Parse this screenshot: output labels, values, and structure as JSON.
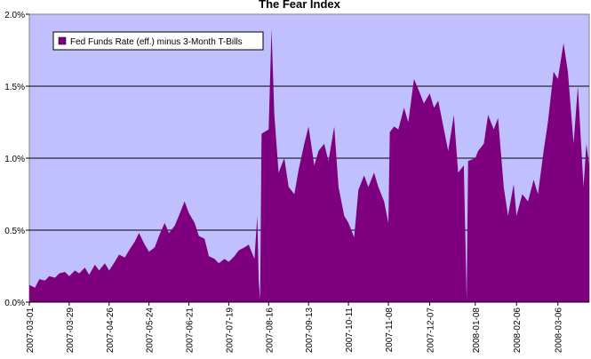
{
  "chart_data": {
    "type": "area",
    "title": "The Fear Index",
    "xlabel": "",
    "ylabel": "",
    "ylim": [
      0,
      2.0
    ],
    "ytick_labels": [
      "0.0%",
      "0.5%",
      "1.0%",
      "1.5%",
      "2.0%"
    ],
    "yticks": [
      0,
      0.5,
      1.0,
      1.5,
      2.0
    ],
    "xlim": [
      "2007-03-01",
      "2008-03-28"
    ],
    "xtick_labels": [
      "2007-03-01",
      "2007-03-29",
      "2007-04-26",
      "2007-05-24",
      "2007-06-21",
      "2007-07-19",
      "2007-08-16",
      "2007-09-13",
      "2007-10-11",
      "2007-11-08",
      "2007-12-07",
      "2008-01-08",
      "2008-02-06",
      "2008-03-06"
    ],
    "grid": "horizontal",
    "legend_position": "top-left",
    "series": [
      {
        "name": "Fed Funds Rate (eff.) minus 3-Month T-Bills",
        "color": "#7f007f",
        "points": [
          [
            "2007-03-01",
            0.12
          ],
          [
            "2007-03-05",
            0.1
          ],
          [
            "2007-03-08",
            0.16
          ],
          [
            "2007-03-12",
            0.15
          ],
          [
            "2007-03-15",
            0.18
          ],
          [
            "2007-03-19",
            0.17
          ],
          [
            "2007-03-22",
            0.2
          ],
          [
            "2007-03-26",
            0.21
          ],
          [
            "2007-03-29",
            0.18
          ],
          [
            "2007-04-02",
            0.22
          ],
          [
            "2007-04-05",
            0.2
          ],
          [
            "2007-04-09",
            0.24
          ],
          [
            "2007-04-12",
            0.19
          ],
          [
            "2007-04-16",
            0.26
          ],
          [
            "2007-04-19",
            0.22
          ],
          [
            "2007-04-23",
            0.27
          ],
          [
            "2007-04-26",
            0.22
          ],
          [
            "2007-04-30",
            0.28
          ],
          [
            "2007-05-03",
            0.33
          ],
          [
            "2007-05-07",
            0.31
          ],
          [
            "2007-05-10",
            0.36
          ],
          [
            "2007-05-14",
            0.42
          ],
          [
            "2007-05-17",
            0.48
          ],
          [
            "2007-05-21",
            0.4
          ],
          [
            "2007-05-24",
            0.35
          ],
          [
            "2007-05-28",
            0.38
          ],
          [
            "2007-05-31",
            0.46
          ],
          [
            "2007-06-04",
            0.55
          ],
          [
            "2007-06-07",
            0.48
          ],
          [
            "2007-06-11",
            0.53
          ],
          [
            "2007-06-14",
            0.6
          ],
          [
            "2007-06-18",
            0.7
          ],
          [
            "2007-06-21",
            0.62
          ],
          [
            "2007-06-25",
            0.55
          ],
          [
            "2007-06-28",
            0.46
          ],
          [
            "2007-07-02",
            0.44
          ],
          [
            "2007-07-05",
            0.32
          ],
          [
            "2007-07-09",
            0.3
          ],
          [
            "2007-07-12",
            0.27
          ],
          [
            "2007-07-16",
            0.3
          ],
          [
            "2007-07-19",
            0.28
          ],
          [
            "2007-07-23",
            0.32
          ],
          [
            "2007-07-26",
            0.36
          ],
          [
            "2007-07-30",
            0.38
          ],
          [
            "2007-08-02",
            0.4
          ],
          [
            "2007-08-06",
            0.3
          ],
          [
            "2007-08-08",
            0.6
          ],
          [
            "2007-08-09",
            0.15
          ],
          [
            "2007-08-10",
            0.02
          ],
          [
            "2007-08-11",
            1.17
          ],
          [
            "2007-08-16",
            1.2
          ],
          [
            "2007-08-18",
            1.9
          ],
          [
            "2007-08-20",
            1.3
          ],
          [
            "2007-08-23",
            0.9
          ],
          [
            "2007-08-27",
            1.0
          ],
          [
            "2007-08-30",
            0.8
          ],
          [
            "2007-09-03",
            0.75
          ],
          [
            "2007-09-06",
            0.92
          ],
          [
            "2007-09-10",
            1.1
          ],
          [
            "2007-09-13",
            1.22
          ],
          [
            "2007-09-17",
            0.95
          ],
          [
            "2007-09-20",
            1.05
          ],
          [
            "2007-09-24",
            1.1
          ],
          [
            "2007-09-27",
            0.98
          ],
          [
            "2007-10-01",
            1.22
          ],
          [
            "2007-10-04",
            0.8
          ],
          [
            "2007-10-08",
            0.6
          ],
          [
            "2007-10-11",
            0.55
          ],
          [
            "2007-10-15",
            0.45
          ],
          [
            "2007-10-18",
            0.78
          ],
          [
            "2007-10-22",
            0.88
          ],
          [
            "2007-10-25",
            0.8
          ],
          [
            "2007-10-29",
            0.9
          ],
          [
            "2007-11-01",
            0.8
          ],
          [
            "2007-11-05",
            0.7
          ],
          [
            "2007-11-08",
            0.55
          ],
          [
            "2007-11-09",
            1.18
          ],
          [
            "2007-11-12",
            1.22
          ],
          [
            "2007-11-15",
            1.2
          ],
          [
            "2007-11-19",
            1.35
          ],
          [
            "2007-11-22",
            1.25
          ],
          [
            "2007-11-26",
            1.55
          ],
          [
            "2007-11-29",
            1.48
          ],
          [
            "2007-12-03",
            1.38
          ],
          [
            "2007-12-07",
            1.45
          ],
          [
            "2007-12-10",
            1.35
          ],
          [
            "2007-12-13",
            1.4
          ],
          [
            "2007-12-17",
            1.2
          ],
          [
            "2007-12-20",
            1.05
          ],
          [
            "2007-12-24",
            1.3
          ],
          [
            "2007-12-27",
            0.9
          ],
          [
            "2007-12-31",
            0.95
          ],
          [
            "2008-01-02",
            0.01
          ],
          [
            "2008-01-03",
            0.98
          ],
          [
            "2008-01-08",
            1.0
          ],
          [
            "2008-01-10",
            1.05
          ],
          [
            "2008-01-14",
            1.1
          ],
          [
            "2008-01-17",
            1.3
          ],
          [
            "2008-01-21",
            1.2
          ],
          [
            "2008-01-24",
            1.28
          ],
          [
            "2008-01-28",
            0.8
          ],
          [
            "2008-01-31",
            0.6
          ],
          [
            "2008-02-04",
            0.82
          ],
          [
            "2008-02-06",
            0.6
          ],
          [
            "2008-02-10",
            0.75
          ],
          [
            "2008-02-14",
            0.7
          ],
          [
            "2008-02-18",
            0.85
          ],
          [
            "2008-02-21",
            0.75
          ],
          [
            "2008-02-25",
            1.05
          ],
          [
            "2008-02-28",
            1.25
          ],
          [
            "2008-03-03",
            1.6
          ],
          [
            "2008-03-06",
            1.55
          ],
          [
            "2008-03-10",
            1.8
          ],
          [
            "2008-03-13",
            1.6
          ],
          [
            "2008-03-17",
            1.1
          ],
          [
            "2008-03-20",
            1.5
          ],
          [
            "2008-03-24",
            0.8
          ],
          [
            "2008-03-26",
            1.1
          ],
          [
            "2008-03-28",
            0.95
          ]
        ]
      }
    ]
  }
}
